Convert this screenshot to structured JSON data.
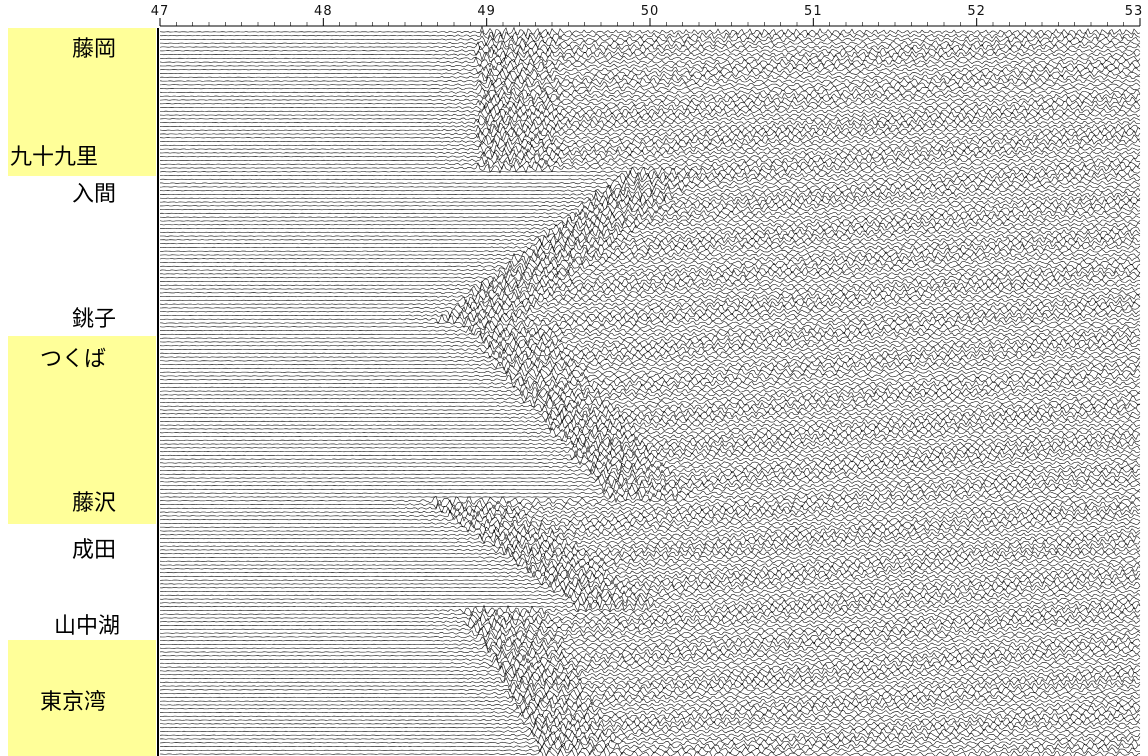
{
  "chart_data": {
    "type": "line",
    "title": "",
    "xlabel": "",
    "ylabel": "",
    "x_ticks": [
      47,
      48,
      49,
      50,
      51,
      52,
      53
    ],
    "xlim": [
      47,
      53
    ],
    "trace_count": 192,
    "groups": [
      {
        "labels": [
          "藤岡",
          "九十九里"
        ],
        "highlight": true,
        "onset_start": 48.95,
        "onset_end": 48.95
      },
      {
        "labels": [
          "入間",
          "銚子"
        ],
        "highlight": false,
        "onset_start": 49.85,
        "onset_end": 48.7
      },
      {
        "labels": [
          "つくば",
          "藤沢"
        ],
        "highlight": true,
        "onset_start": 48.85,
        "onset_end": 49.75
      },
      {
        "labels": [
          "成田",
          "山中湖"
        ],
        "highlight": false,
        "onset_start": 48.65,
        "onset_end": 49.55
      },
      {
        "labels": [
          "東京湾"
        ],
        "highlight": true,
        "onset_start": 48.85,
        "onset_end": 49.35
      }
    ],
    "highlight_color": "#ffff99",
    "trace_color": "#000000"
  }
}
